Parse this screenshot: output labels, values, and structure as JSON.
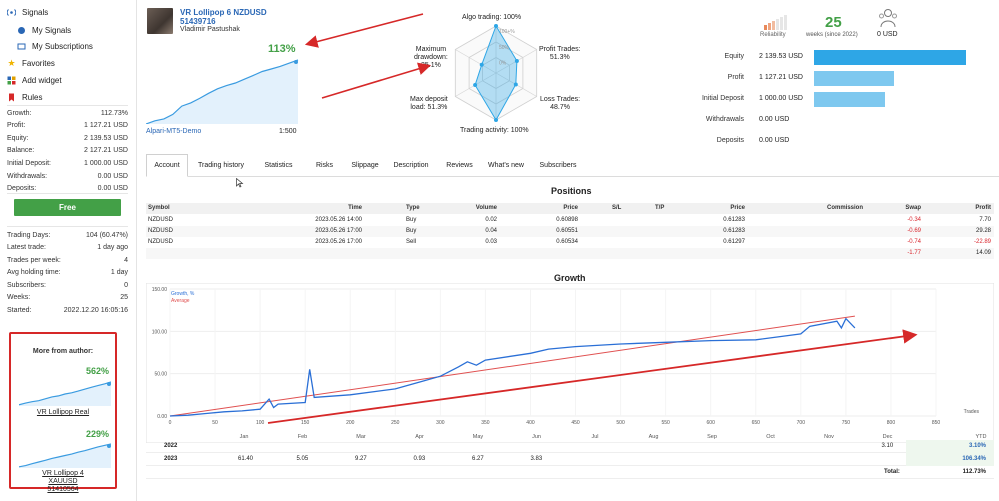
{
  "sidebar": {
    "nav": [
      {
        "label": "Signals",
        "icon": "antenna-icon"
      },
      {
        "label": "My Signals",
        "icon": "signal-icon"
      },
      {
        "label": "My Subscriptions",
        "icon": "subscription-icon"
      },
      {
        "label": "Favorites",
        "icon": "star-icon"
      },
      {
        "label": "Add widget",
        "icon": "widget-icon"
      },
      {
        "label": "Rules",
        "icon": "bookmark-icon"
      }
    ],
    "stats": [
      {
        "label": "Growth:",
        "value": "112.73%"
      },
      {
        "label": "Profit:",
        "value": "1 127.21 USD"
      },
      {
        "label": "Equity:",
        "value": "2 139.53 USD"
      },
      {
        "label": "Balance:",
        "value": "2 127.21 USD"
      },
      {
        "label": "Initial Deposit:",
        "value": "1 000.00 USD"
      },
      {
        "label": "Withdrawals:",
        "value": "0.00 USD"
      },
      {
        "label": "Deposits:",
        "value": "0.00 USD"
      }
    ],
    "free_label": "Free",
    "stats2": [
      {
        "label": "Trading Days:",
        "value": "104 (60.47%)"
      },
      {
        "label": "Latest trade:",
        "value": "1 day ago"
      },
      {
        "label": "Trades per week:",
        "value": "4"
      },
      {
        "label": "Avg holding time:",
        "value": "1 day"
      },
      {
        "label": "Subscribers:",
        "value": "0"
      },
      {
        "label": "Weeks:",
        "value": "25"
      },
      {
        "label": "Started:",
        "value": "2022.12.20 16:05:16"
      }
    ],
    "author_box": {
      "title": "More from author:",
      "items": [
        {
          "pct": "562%",
          "name": "VR Lollipop Real",
          "curve": [
            0.05,
            0.12,
            0.18,
            0.22,
            0.3,
            0.38,
            0.42,
            0.5,
            0.55,
            0.62,
            0.7,
            0.78,
            0.85,
            0.92,
            1.0
          ]
        },
        {
          "pct": "229%",
          "name": "VR Lollipop 4 XAUUSD 51410564",
          "curve": [
            0.05,
            0.1,
            0.18,
            0.25,
            0.32,
            0.4,
            0.46,
            0.52,
            0.58,
            0.66,
            0.72,
            0.8,
            0.88,
            0.94,
            1.0
          ]
        }
      ]
    }
  },
  "header": {
    "title": "VR Lollipop 6 NZDUSD",
    "id": "51439716",
    "author": "Vladimir Pastushak",
    "growth_pct": "113%",
    "broker": "Alpari-MT5-Demo",
    "leverage": "1:500",
    "mini_curve": [
      0.0,
      0.05,
      0.08,
      0.15,
      0.28,
      0.33,
      0.4,
      0.48,
      0.55,
      0.6,
      0.64,
      0.7,
      0.76,
      0.82,
      0.86,
      0.9,
      0.95,
      1.0
    ]
  },
  "radar": {
    "labels": {
      "algo": "Algo trading: 100%",
      "profit_trades_a": "Profit Trades:",
      "profit_trades_b": "51.3%",
      "loss_trades_a": "Loss Trades:",
      "loss_trades_b": "48.7%",
      "activity": "Trading activity: 100%",
      "deposit_a": "Max deposit",
      "deposit_b": "load: 51.3%",
      "drawdown_a": "Maximum",
      "drawdown_b": "drawdown:",
      "drawdown_c": "35.1%"
    },
    "ring_labels": [
      "100+%",
      "50%",
      "0%"
    ],
    "values": [
      1.0,
      0.513,
      0.487,
      1.0,
      0.513,
      0.351
    ]
  },
  "metrics": {
    "reliability_label": "Reliability",
    "weeks_value": "25",
    "weeks_label": "weeks (since 2022)",
    "subscribers_value": "0 USD",
    "bars": [
      {
        "label": "Equity",
        "value": "2 139.53 USD",
        "amount": 2139.53
      },
      {
        "label": "Profit",
        "value": "1 127.21 USD",
        "amount": 1127.21
      },
      {
        "label": "Initial Deposit",
        "value": "1 000.00 USD",
        "amount": 1000.0
      },
      {
        "label": "Withdrawals",
        "value": "0.00 USD",
        "amount": 0
      },
      {
        "label": "Deposits",
        "value": "0.00 USD",
        "amount": 0
      }
    ],
    "bar_color": "#2ea6e6",
    "bar_color_light": "#7ec8ef"
  },
  "tabs": [
    "Account",
    "Trading history",
    "Statistics",
    "Risks",
    "Slippage",
    "Description",
    "Reviews",
    "What's new",
    "Subscribers"
  ],
  "positions": {
    "title": "Positions",
    "headers": [
      "Symbol",
      "Time",
      "Type",
      "Volume",
      "Price",
      "S/L",
      "T/P",
      "Price",
      "Commission",
      "Swap",
      "Profit"
    ],
    "rows": [
      [
        "NZDUSD",
        "2023.05.26 14:00",
        "Buy",
        "0.02",
        "0.60898",
        "",
        "",
        "0.61283",
        "",
        "-0.34",
        "7.70"
      ],
      [
        "NZDUSD",
        "2023.05.26 17:00",
        "Buy",
        "0.04",
        "0.60551",
        "",
        "",
        "0.61283",
        "",
        "-0.69",
        "29.28"
      ],
      [
        "NZDUSD",
        "2023.05.26 17:00",
        "Sell",
        "0.03",
        "0.60534",
        "",
        "",
        "0.61297",
        "",
        "-0.74",
        "-22.89"
      ]
    ],
    "total_swap": "-1.77",
    "total_profit": "14.09"
  },
  "growth": {
    "title": "Growth",
    "legend_growth": "Growth, %",
    "legend_average": "Average",
    "y_ticks": [
      "150.00",
      "100.00",
      "50.00",
      "0.00"
    ],
    "x_ticks": [
      "0",
      "50",
      "100",
      "150",
      "200",
      "250",
      "300",
      "350",
      "400",
      "450",
      "500",
      "550",
      "600",
      "650",
      "700",
      "750",
      "800",
      "850"
    ],
    "x_axis_label": "Trades",
    "months": [
      "Jan",
      "Feb",
      "Mar",
      "Apr",
      "May",
      "Jun",
      "Jul",
      "Aug",
      "Sep",
      "Oct",
      "Nov",
      "Dec",
      "YTD"
    ],
    "growth_color": "#2a6fd6",
    "average_color": "#e05050"
  },
  "chart_data": {
    "type": "line",
    "x_label": "Trades",
    "xlim": [
      0,
      850
    ],
    "ylim": [
      0,
      150
    ],
    "series": [
      {
        "name": "Growth, %",
        "x": [
          0,
          20,
          40,
          60,
          80,
          100,
          110,
          115,
          120,
          150,
          155,
          160,
          200,
          250,
          300,
          320,
          330,
          340,
          350,
          400,
          420,
          450,
          500,
          550,
          600,
          650,
          700,
          710,
          740,
          745,
          750,
          760
        ],
        "y": [
          0,
          1,
          3,
          5,
          6,
          8,
          20,
          10,
          14,
          16,
          55,
          22,
          25,
          32,
          47,
          58,
          64,
          60,
          66,
          74,
          79,
          82,
          85,
          87,
          89,
          90,
          97,
          106,
          112,
          104,
          115,
          104
        ]
      },
      {
        "name": "Average",
        "x": [
          0,
          760
        ],
        "y": [
          0,
          118
        ]
      }
    ]
  },
  "yearly": {
    "rows": [
      {
        "year": "2022",
        "values": [
          "",
          "",
          "",
          "",
          "",
          "",
          "",
          "",
          "",
          "",
          "",
          "3.10"
        ],
        "ytd": "3.10%"
      },
      {
        "year": "2023",
        "values": [
          "61.40",
          "5.05",
          "9.27",
          "0.93",
          "6.27",
          "3.83",
          "",
          "",
          "",
          "",
          "",
          ""
        ],
        "ytd": "106.34%"
      }
    ],
    "total_label": "Total:",
    "total_value": "112.73%"
  },
  "annotation_color": "#d62828"
}
